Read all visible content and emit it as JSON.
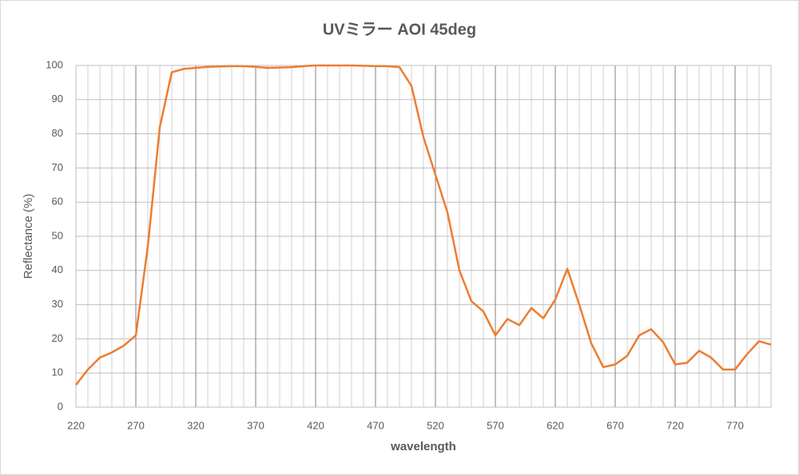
{
  "chart_data": {
    "type": "line",
    "title": "UVミラー AOI 45deg",
    "x_label": "wavelength",
    "y_label": "Reflectance (%)",
    "x": [
      220,
      230,
      240,
      250,
      260,
      270,
      280,
      290,
      300,
      310,
      320,
      330,
      340,
      350,
      360,
      370,
      380,
      390,
      400,
      410,
      420,
      430,
      440,
      450,
      460,
      470,
      480,
      490,
      500,
      510,
      520,
      530,
      540,
      550,
      560,
      570,
      580,
      590,
      600,
      610,
      620,
      630,
      640,
      650,
      660,
      670,
      680,
      690,
      700,
      710,
      720,
      730,
      740,
      750,
      760,
      770,
      780,
      790,
      800
    ],
    "series": [
      {
        "name": "Reflectance",
        "color": "#ed7d31",
        "values": [
          6.5,
          11,
          14.5,
          16,
          18,
          21,
          47,
          82,
          98,
          99,
          99.3,
          99.6,
          99.7,
          99.8,
          99.8,
          99.6,
          99.3,
          99.4,
          99.5,
          99.8,
          100,
          100,
          100,
          100,
          99.9,
          99.8,
          99.8,
          99.5,
          94,
          79,
          68,
          57,
          40,
          31,
          28,
          21,
          25.8,
          24,
          29,
          26,
          31.5,
          40.5,
          30,
          18.7,
          11.7,
          12.5,
          15,
          21,
          22.8,
          19,
          12.5,
          13,
          16.5,
          14.5,
          11,
          11,
          15.5,
          19.3,
          18.3
        ]
      }
    ],
    "xlim": [
      220,
      800
    ],
    "ylim": [
      0,
      100
    ],
    "xticks": [
      220,
      270,
      320,
      370,
      420,
      470,
      520,
      570,
      620,
      670,
      720,
      770
    ],
    "xminorticks": [
      230,
      240,
      250,
      260,
      280,
      290,
      300,
      310,
      330,
      340,
      350,
      360,
      380,
      390,
      400,
      410,
      430,
      440,
      450,
      460,
      480,
      490,
      500,
      510,
      530,
      540,
      550,
      560,
      580,
      590,
      600,
      610,
      630,
      640,
      650,
      660,
      680,
      690,
      700,
      710,
      730,
      740,
      750,
      760,
      780,
      790,
      800
    ],
    "yticks": [
      0,
      10,
      20,
      30,
      40,
      50,
      60,
      70,
      80,
      90,
      100
    ],
    "grid": true
  }
}
